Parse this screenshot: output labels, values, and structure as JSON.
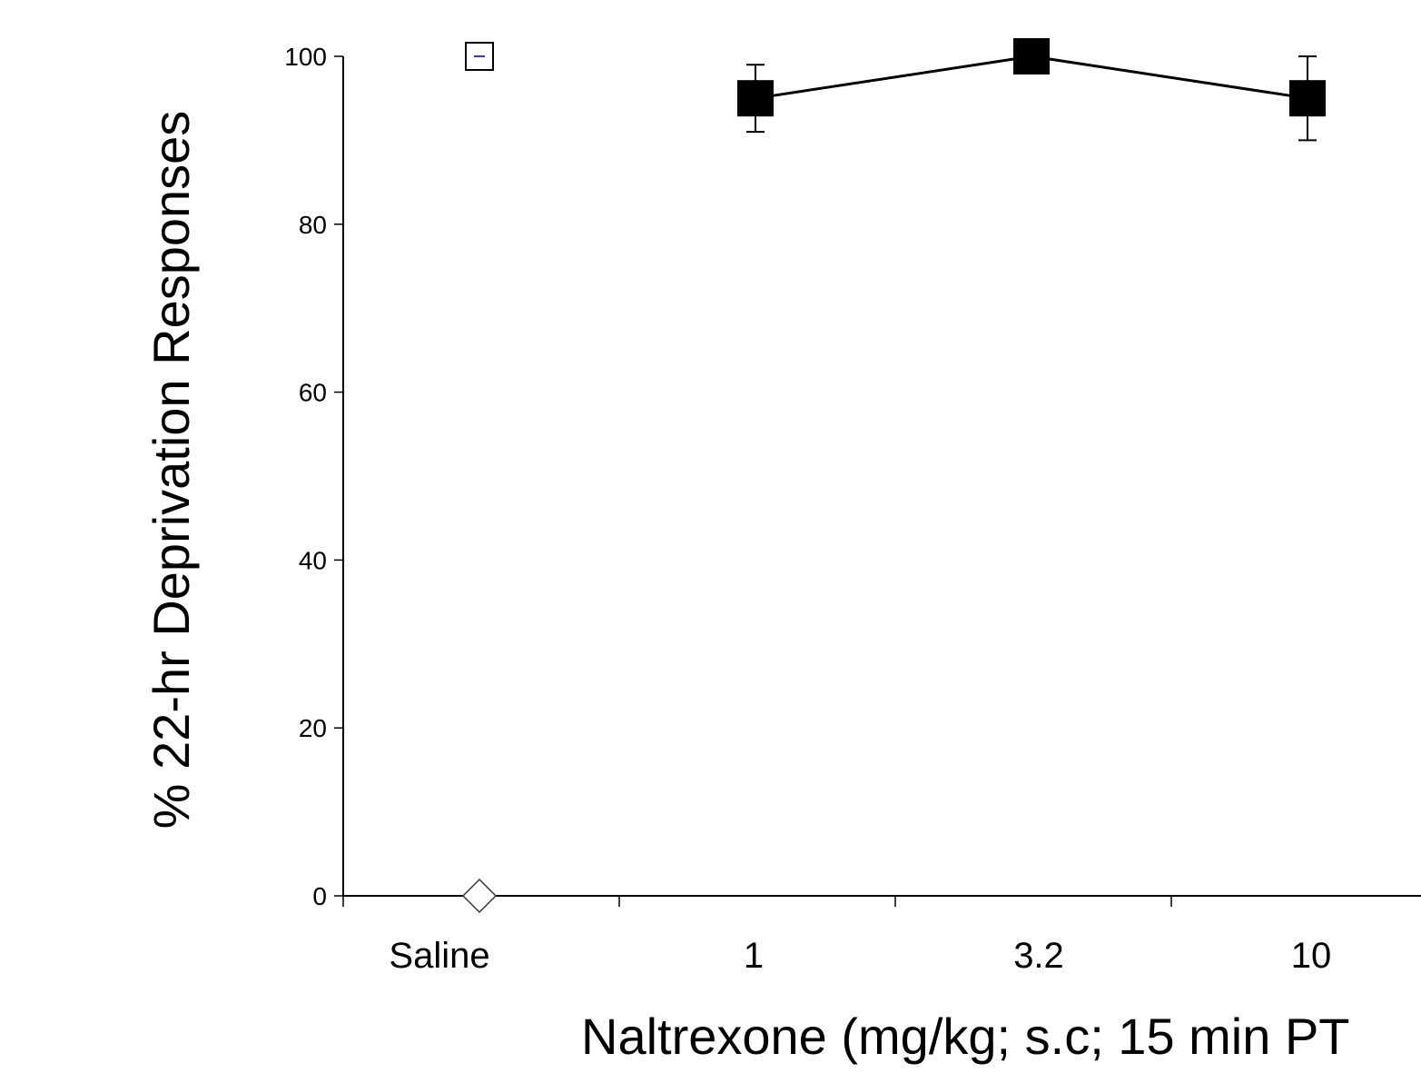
{
  "chart_data": {
    "type": "scatter",
    "xlabel": "Naltrexone (mg/kg; s.c; 15 min PT",
    "ylabel": "% 22-hr Deprivation Responses",
    "ylim": [
      0,
      100
    ],
    "yticks": [
      "0",
      "20",
      "40",
      "60",
      "80",
      "100"
    ],
    "categories": [
      "Saline",
      "1",
      "3.2",
      "10"
    ],
    "grid": false,
    "series": [
      {
        "marker": "open-square",
        "color": "#000000",
        "points": [
          {
            "x": "Saline",
            "y": 100,
            "error": 0
          }
        ]
      },
      {
        "marker": "open-diamond",
        "color": "#000000",
        "points": [
          {
            "x": "Saline",
            "y": 0
          }
        ]
      },
      {
        "marker": "filled-square",
        "color": "#000000",
        "line": true,
        "points": [
          {
            "x": "1",
            "y": 95,
            "error": 4
          },
          {
            "x": "3.2",
            "y": 100,
            "error": 0
          },
          {
            "x": "10",
            "y": 95,
            "error": 5
          }
        ]
      }
    ]
  }
}
